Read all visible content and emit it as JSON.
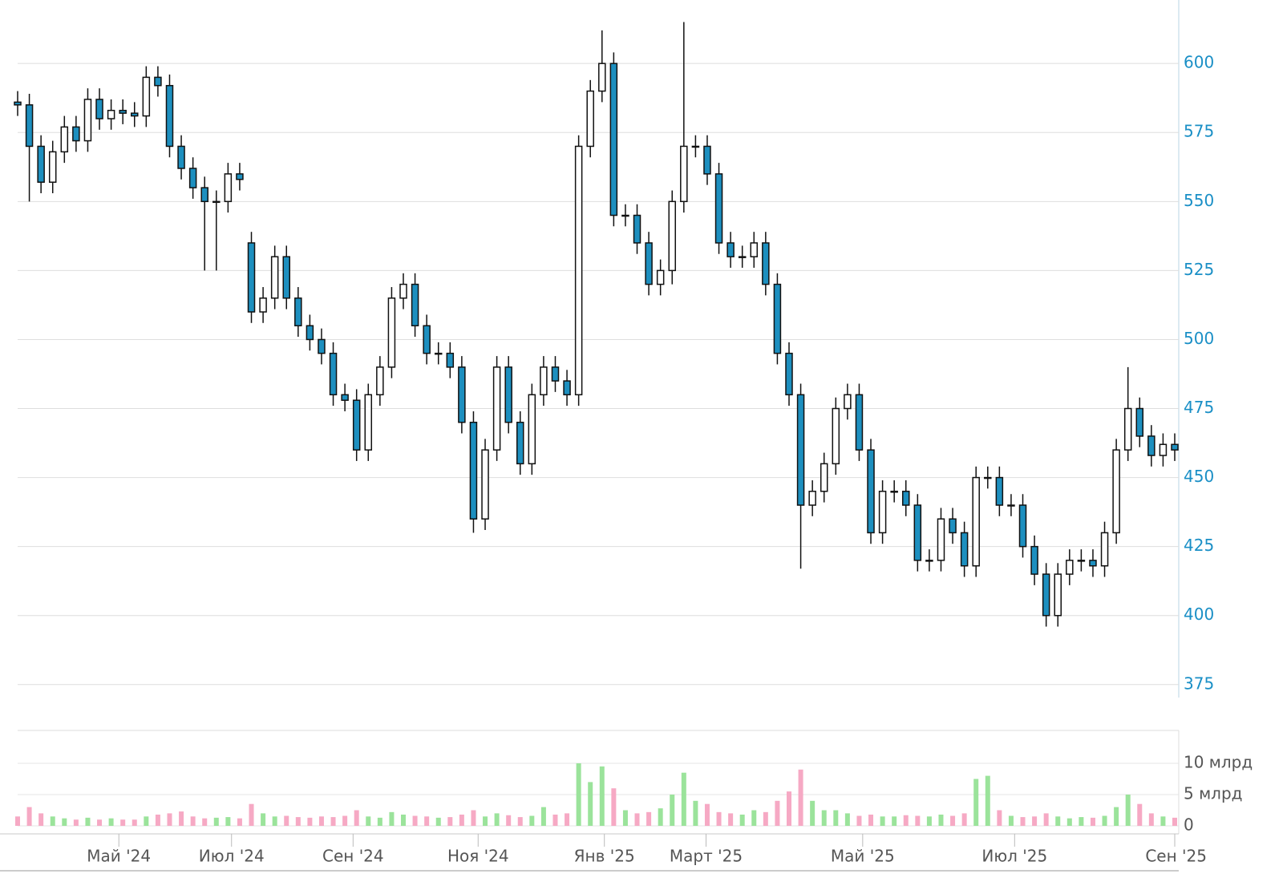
{
  "chart_data": {
    "type": "candlestick",
    "open": [
      586,
      585,
      570,
      557,
      568,
      577,
      572,
      587,
      580,
      583,
      582,
      581,
      595,
      592,
      570,
      562,
      555,
      550,
      550,
      560,
      535,
      510,
      515,
      530,
      515,
      505,
      500,
      495,
      480,
      478,
      460,
      480,
      490,
      515,
      520,
      505,
      495,
      495,
      490,
      470,
      435,
      460,
      490,
      470,
      455,
      480,
      490,
      485,
      480,
      570,
      590,
      600,
      545,
      545,
      535,
      520,
      525,
      550,
      570,
      570,
      560,
      535,
      530,
      530,
      535,
      520,
      495,
      480,
      440,
      445,
      455,
      475,
      480,
      460,
      430,
      445,
      445,
      440,
      420,
      420,
      435,
      430,
      418,
      450,
      450,
      440,
      440,
      425,
      415,
      400,
      415,
      420,
      420,
      418,
      430,
      460,
      475,
      465,
      458,
      462
    ],
    "high": [
      590,
      589,
      574,
      572,
      581,
      581,
      591,
      591,
      587,
      587,
      586,
      599,
      599,
      596,
      574,
      566,
      559,
      554,
      564,
      564,
      539,
      519,
      534,
      534,
      519,
      509,
      504,
      499,
      484,
      482,
      484,
      494,
      519,
      524,
      524,
      509,
      499,
      499,
      494,
      474,
      464,
      494,
      494,
      474,
      484,
      494,
      494,
      489,
      574,
      594,
      612,
      604,
      549,
      549,
      539,
      529,
      554,
      615,
      574,
      574,
      564,
      539,
      534,
      539,
      539,
      524,
      499,
      484,
      449,
      459,
      479,
      484,
      484,
      464,
      449,
      449,
      449,
      444,
      424,
      439,
      439,
      434,
      454,
      454,
      454,
      444,
      444,
      429,
      419,
      419,
      424,
      424,
      424,
      434,
      464,
      490,
      479,
      469,
      466,
      466
    ],
    "low": [
      581,
      550,
      553,
      553,
      564,
      568,
      568,
      576,
      576,
      578,
      577,
      577,
      588,
      566,
      558,
      551,
      525,
      525,
      546,
      554,
      506,
      506,
      511,
      511,
      501,
      496,
      491,
      476,
      474,
      456,
      456,
      476,
      486,
      511,
      501,
      491,
      491,
      486,
      466,
      430,
      431,
      456,
      466,
      451,
      451,
      476,
      481,
      476,
      476,
      566,
      586,
      541,
      541,
      531,
      516,
      516,
      520,
      546,
      566,
      556,
      531,
      526,
      526,
      526,
      516,
      491,
      476,
      417,
      436,
      441,
      451,
      471,
      456,
      426,
      426,
      441,
      436,
      416,
      416,
      416,
      426,
      414,
      414,
      446,
      436,
      436,
      421,
      411,
      396,
      396,
      411,
      416,
      414,
      414,
      426,
      456,
      461,
      454,
      454,
      456
    ],
    "close": [
      585,
      570,
      557,
      568,
      577,
      572,
      587,
      580,
      583,
      582,
      581,
      595,
      592,
      570,
      562,
      555,
      550,
      550,
      560,
      558,
      510,
      515,
      530,
      515,
      505,
      500,
      495,
      480,
      478,
      460,
      480,
      490,
      515,
      520,
      505,
      495,
      495,
      490,
      470,
      435,
      460,
      490,
      470,
      455,
      480,
      490,
      485,
      480,
      570,
      590,
      600,
      545,
      545,
      535,
      520,
      525,
      550,
      570,
      570,
      560,
      535,
      530,
      530,
      535,
      520,
      495,
      480,
      440,
      445,
      455,
      475,
      480,
      460,
      430,
      445,
      445,
      440,
      420,
      420,
      435,
      430,
      418,
      450,
      450,
      440,
      440,
      425,
      415,
      400,
      415,
      420,
      420,
      418,
      430,
      460,
      475,
      465,
      458,
      462,
      460
    ],
    "volume": [
      1.5,
      3,
      2,
      1.5,
      1.2,
      1,
      1.3,
      1,
      1.2,
      1,
      1,
      1.5,
      1.8,
      2,
      2.3,
      1.5,
      1.2,
      1.3,
      1.4,
      1.2,
      3.5,
      2,
      1.5,
      1.6,
      1.4,
      1.3,
      1.5,
      1.4,
      1.6,
      2.5,
      1.5,
      1.3,
      2.2,
      1.8,
      1.6,
      1.5,
      1.3,
      1.4,
      1.8,
      2.5,
      1.5,
      2,
      1.7,
      1.4,
      1.6,
      3,
      1.8,
      2,
      10,
      7,
      9.5,
      6,
      2.5,
      2,
      2.2,
      2.8,
      5,
      8.5,
      4,
      3.5,
      2.2,
      2,
      1.8,
      2.5,
      2.2,
      4,
      5.5,
      9,
      4,
      2.5,
      2.5,
      2,
      1.6,
      1.8,
      1.5,
      1.5,
      1.7,
      1.6,
      1.5,
      1.8,
      1.6,
      2,
      7.5,
      8,
      2.5,
      1.6,
      1.4,
      1.5,
      2,
      1.5,
      1.2,
      1.4,
      1.3,
      1.6,
      3,
      5,
      3.5,
      2,
      1.5,
      1.3
    ],
    "up_color": "#ffffff",
    "down_color": "#1d8fbf",
    "volume_up_color": "#9be39b",
    "volume_down_color": "#f6a9c4",
    "xlim": [
      0,
      99
    ],
    "xticks": [
      {
        "value": 8.66,
        "label": "Май '24"
      },
      {
        "value": 18.3,
        "label": "Июл '24"
      },
      {
        "value": 28.7,
        "label": "Сен '24"
      },
      {
        "value": 39.4,
        "label": "Ноя '24"
      },
      {
        "value": 50.2,
        "label": "Янв '25"
      },
      {
        "value": 58.9,
        "label": "Март '25"
      },
      {
        "value": 72.3,
        "label": "Май '25"
      },
      {
        "value": 85.3,
        "label": "Июл '25"
      },
      {
        "value": 99,
        "label": "Сен '25"
      }
    ],
    "ylim": [
      370,
      623
    ],
    "yticks": [
      375,
      400,
      425,
      450,
      475,
      500,
      525,
      550,
      575,
      600
    ],
    "vlim": [
      0,
      15
    ],
    "vticks": [
      {
        "value": 0,
        "label": "0"
      },
      {
        "value": 5,
        "label": "5 млрд"
      },
      {
        "value": 10,
        "label": "10 млрд"
      }
    ],
    "grid": true
  }
}
